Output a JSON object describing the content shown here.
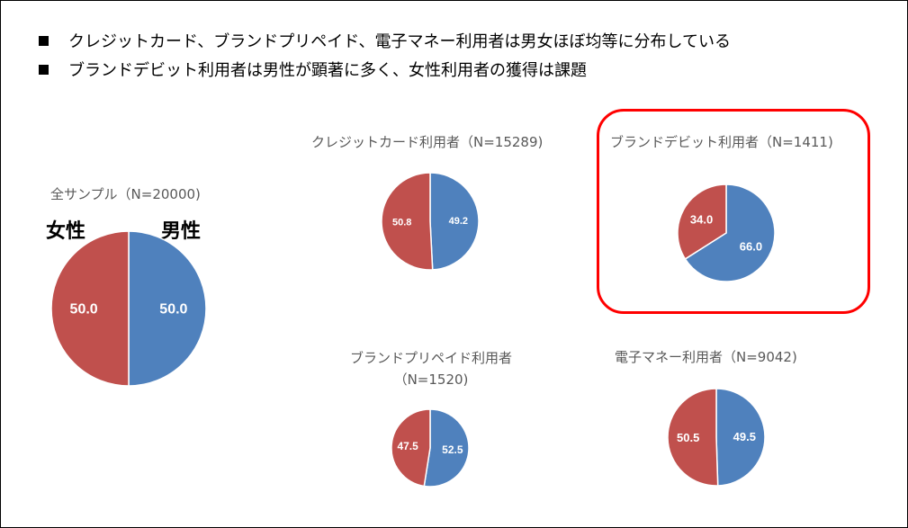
{
  "bullets": [
    "クレジットカード、ブランドプリペイド、電子マネー利用者は男女ほぼ均等に分布している",
    "ブランドデビット利用者は男性が顕著に多く、女性利用者の獲得は課題"
  ],
  "legend_labels": {
    "female": "女性",
    "male": "男性"
  },
  "colors": {
    "male": "#4f81bd",
    "female": "#c0504d",
    "highlight": "#ff0000"
  },
  "chart_data": [
    {
      "type": "pie",
      "title": "全サンプル（N=20000)",
      "labels": [
        "男性",
        "女性"
      ],
      "values": [
        50.0,
        50.0
      ]
    },
    {
      "type": "pie",
      "title": "クレジットカード利用者（N=15289)",
      "labels": [
        "男性",
        "女性"
      ],
      "values": [
        49.2,
        50.8
      ]
    },
    {
      "type": "pie",
      "title": "ブランドデビット利用者（N=1411)",
      "labels": [
        "男性",
        "女性"
      ],
      "values": [
        66.0,
        34.0
      ],
      "highlighted": true
    },
    {
      "type": "pie",
      "title": "ブランドプリペイド利用者（N=1520)",
      "labels": [
        "男性",
        "女性"
      ],
      "values": [
        52.5,
        47.5
      ]
    },
    {
      "type": "pie",
      "title": "電子マネー利用者（N=9042)",
      "labels": [
        "男性",
        "女性"
      ],
      "values": [
        49.5,
        50.5
      ]
    }
  ]
}
